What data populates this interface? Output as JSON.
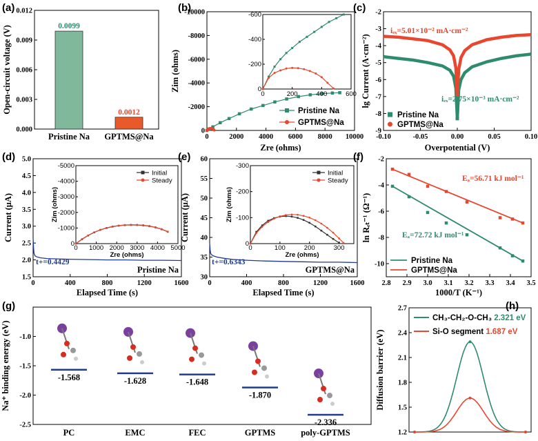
{
  "colors": {
    "green": "#2e8b6c",
    "red": "#e8462e",
    "blue": "#1f3a8f",
    "gray": "#555555",
    "barGreen": "#7fb89a",
    "barRed": "#e85a2a"
  },
  "panel_labels": [
    "(a)",
    "(b)",
    "(c)",
    "(d)",
    "(e)",
    "(f)",
    "(g)",
    "(h)"
  ],
  "chart_data": [
    {
      "id": "a",
      "type": "bar",
      "ylabel": "Open-circuit voltage (V)",
      "categories": [
        "Pristine Na",
        "GPTMS@Na"
      ],
      "values": [
        0.0099,
        0.0012
      ],
      "value_labels": [
        "0.0099",
        "0.0012"
      ],
      "ylim": [
        0,
        0.012
      ],
      "yticks": [
        "0.000",
        "0.003",
        "0.006",
        "0.009",
        "0.012"
      ]
    },
    {
      "id": "b",
      "type": "scatter",
      "xlabel": "Zre (ohms)",
      "ylabel": "Zim (ohms)",
      "xlim": [
        0,
        10000
      ],
      "ylim": [
        0,
        -10000
      ],
      "xticks": [
        "0",
        "2000",
        "4000",
        "6000",
        "8000",
        "10000"
      ],
      "yticks": [
        "0",
        "-2000",
        "-4000",
        "-6000",
        "-8000",
        "-10000"
      ],
      "series": [
        {
          "name": "Pristine Na",
          "x": [
            0,
            150,
            400,
            900,
            1500,
            2200,
            3000,
            3800,
            4600,
            5400,
            6200,
            7000,
            7800,
            8500,
            9000
          ],
          "y": [
            0,
            -120,
            -300,
            -650,
            -1000,
            -1400,
            -1800,
            -2100,
            -2400,
            -2650,
            -2850,
            -3000,
            -3100,
            -3150,
            -3180
          ]
        },
        {
          "name": "GPTMS@Na",
          "x": [
            0,
            50,
            100,
            150,
            200,
            250,
            300,
            350,
            400,
            450,
            500
          ],
          "y": [
            0,
            -80,
            -120,
            -150,
            -165,
            -170,
            -165,
            -150,
            -120,
            -70,
            -20
          ]
        }
      ],
      "inset": {
        "xlim": [
          0,
          600
        ],
        "ylim": [
          0,
          -600
        ],
        "xticks": [
          "0",
          "200",
          "400",
          "600"
        ],
        "yticks": [
          "0",
          "-200",
          "-400",
          "-600"
        ],
        "series": [
          {
            "name": "Pristine Na",
            "x": [
              0,
              40,
              80,
              120,
              160,
              200,
              250,
              300,
              350,
              400,
              450,
              500,
              550
            ],
            "y": [
              0,
              -100,
              -180,
              -240,
              -290,
              -330,
              -380,
              -420,
              -460,
              -500,
              -540,
              -570,
              -600
            ]
          },
          {
            "name": "GPTMS@Na",
            "x": [
              0,
              40,
              80,
              120,
              160,
              200,
              240,
              280,
              320,
              360,
              400,
              440,
              480
            ],
            "y": [
              0,
              -90,
              -130,
              -150,
              -165,
              -170,
              -168,
              -160,
              -145,
              -125,
              -95,
              -50,
              -5
            ]
          }
        ]
      },
      "legend": [
        "Pristine Na",
        "GPTMS@Na"
      ]
    },
    {
      "id": "c",
      "type": "scatter",
      "xlabel": "Overpotential (V)",
      "ylabel": "lg Current (A·cm⁻²)",
      "xlim": [
        -0.1,
        0.1
      ],
      "ylim": [
        -9,
        -2
      ],
      "xticks": [
        "-0.10",
        "-0.05",
        "0.00",
        "0.05",
        "0.10"
      ],
      "yticks": [
        "-2",
        "-3",
        "-4",
        "-5",
        "-6",
        "-7",
        "-8",
        "-9"
      ],
      "annotations": [
        "iₑₓ=5.01×10⁻² mA·cm⁻²",
        "iₑₓ=2.75×10⁻³ mA·cm⁻²"
      ],
      "series": [
        {
          "name": "Pristine Na",
          "x": [
            -0.1,
            -0.08,
            -0.06,
            -0.04,
            -0.02,
            -0.01,
            -0.005,
            -0.002,
            0,
            0.002,
            0.005,
            0.01,
            0.02,
            0.04,
            0.06,
            0.08,
            0.1
          ],
          "y": [
            -4.65,
            -4.75,
            -4.85,
            -5.0,
            -5.2,
            -5.45,
            -5.8,
            -6.5,
            -8.3,
            -6.6,
            -6.0,
            -5.6,
            -5.25,
            -4.95,
            -4.75,
            -4.6,
            -4.5
          ]
        },
        {
          "name": "GPTMS@Na",
          "x": [
            -0.1,
            -0.08,
            -0.06,
            -0.04,
            -0.02,
            -0.01,
            -0.005,
            -0.002,
            0,
            0.002,
            0.005,
            0.01,
            0.02,
            0.04,
            0.06,
            0.08,
            0.1
          ],
          "y": [
            -3.45,
            -3.5,
            -3.6,
            -3.7,
            -3.95,
            -4.25,
            -4.6,
            -5.3,
            -6.9,
            -5.4,
            -4.7,
            -4.3,
            -3.95,
            -3.65,
            -3.5,
            -3.4,
            -3.35
          ]
        }
      ],
      "legend": [
        "Pristine Na",
        "GPTMS@Na"
      ]
    },
    {
      "id": "d",
      "type": "line",
      "xlabel": "Elapsed Time (s)",
      "ylabel": "Current (μA)",
      "xlim": [
        0,
        1600
      ],
      "ylim": [
        1.5,
        5.0
      ],
      "xticks": [
        "0",
        "400",
        "800",
        "1200",
        "1600"
      ],
      "yticks": [
        "1.5",
        "2.0",
        "2.5",
        "3.0",
        "3.5",
        "4.0",
        "4.5",
        "5.0"
      ],
      "t_plus": "t+=0.4429",
      "sample_label": "Pristine Na",
      "series": [
        {
          "name": "current",
          "x": [
            0,
            5,
            10,
            20,
            40,
            80,
            150,
            250,
            400,
            600,
            800,
            1000,
            1200,
            1400,
            1600
          ],
          "y": [
            2.65,
            2.35,
            2.2,
            2.12,
            2.09,
            2.06,
            2.04,
            2.03,
            2.02,
            2.01,
            2.0,
            2.0,
            1.99,
            1.99,
            1.98
          ]
        }
      ],
      "inset": {
        "xlabel": "Zre (ohms)",
        "ylabel": "Zim (ohms)",
        "xlim": [
          0,
          5000
        ],
        "ylim": [
          0,
          -5000
        ],
        "xticks": [
          "0",
          "1000",
          "2000",
          "3000",
          "4000",
          "5000"
        ],
        "yticks": [
          "0",
          "-1000",
          "-2000",
          "-3000",
          "-4000",
          "-5000"
        ],
        "legend": [
          "Initial",
          "Steady"
        ],
        "series": [
          {
            "name": "Initial",
            "x": [
              0,
              300,
              600,
              900,
              1200,
              1500,
              1800,
              2100,
              2400,
              2700,
              3000,
              3300,
              3600,
              3900,
              4200,
              4500
            ],
            "y": [
              0,
              -280,
              -520,
              -720,
              -880,
              -1000,
              -1090,
              -1150,
              -1185,
              -1200,
              -1195,
              -1170,
              -1120,
              -1040,
              -920,
              -760
            ]
          },
          {
            "name": "Steady",
            "x": [
              0,
              300,
              600,
              900,
              1200,
              1500,
              1800,
              2100,
              2400,
              2700,
              3000,
              3300,
              3600,
              3900,
              4200,
              4500
            ],
            "y": [
              0,
              -290,
              -530,
              -730,
              -890,
              -1010,
              -1100,
              -1160,
              -1195,
              -1210,
              -1205,
              -1180,
              -1130,
              -1050,
              -930,
              -770
            ]
          }
        ]
      }
    },
    {
      "id": "e",
      "type": "line",
      "xlabel": "Elapsed Time (s)",
      "ylabel": "Current (μA)",
      "xlim": [
        0,
        1600
      ],
      "ylim": [
        30,
        60
      ],
      "xticks": [
        "0",
        "400",
        "800",
        "1200",
        "1600"
      ],
      "yticks": [
        "30",
        "35",
        "40",
        "45",
        "50",
        "55",
        "60"
      ],
      "t_plus": "t+=0.6343",
      "sample_label": "GPTMS@Na",
      "series": [
        {
          "name": "current",
          "x": [
            0,
            5,
            10,
            20,
            40,
            80,
            150,
            250,
            400,
            600,
            800,
            1000,
            1200,
            1400,
            1600
          ],
          "y": [
            38.5,
            36.8,
            36.0,
            35.6,
            35.3,
            35.0,
            34.7,
            34.4,
            34.2,
            34.0,
            33.9,
            33.8,
            33.7,
            33.7,
            33.6
          ]
        }
      ],
      "inset": {
        "xlabel": "Zre (ohms)",
        "ylabel": "Zim (ohms)",
        "xlim": [
          0,
          350
        ],
        "ylim": [
          0,
          -300
        ],
        "xticks": [
          "0",
          "100",
          "200",
          "300"
        ],
        "yticks": [
          "0",
          "-100",
          "-200",
          "-300"
        ],
        "legend": [
          "Initial",
          "Steady"
        ],
        "series": [
          {
            "name": "Initial",
            "x": [
              0,
              20,
              40,
              60,
              80,
              100,
              120,
              140,
              160,
              180,
              200,
              220,
              240,
              260,
              280,
              300
            ],
            "y": [
              0,
              -45,
              -70,
              -88,
              -98,
              -104,
              -106,
              -104,
              -99,
              -91,
              -80,
              -66,
              -50,
              -34,
              -18,
              -3
            ]
          },
          {
            "name": "Steady",
            "x": [
              0,
              20,
              40,
              60,
              80,
              100,
              120,
              140,
              160,
              180,
              200,
              220,
              240,
              260,
              280,
              300,
              315
            ],
            "y": [
              0,
              -40,
              -65,
              -83,
              -96,
              -105,
              -110,
              -112,
              -111,
              -107,
              -100,
              -90,
              -77,
              -61,
              -42,
              -20,
              -3
            ]
          }
        ]
      }
    },
    {
      "id": "f",
      "type": "scatter",
      "xlabel": "1000/T (K⁻¹)",
      "ylabel": "ln Rₑₜ⁻¹ (Ω⁻¹)",
      "xlim": [
        2.8,
        3.5
      ],
      "ylim": [
        -11,
        -2
      ],
      "xticks": [
        "2.8",
        "2.9",
        "3.0",
        "3.1",
        "3.2",
        "3.3",
        "3.4",
        "3.5"
      ],
      "yticks": [
        "-2",
        "-4",
        "-6",
        "-8",
        "-10"
      ],
      "annotations": [
        "Eₐ=56.71 kJ mol⁻¹",
        "Eₐ=72.72 kJ mol⁻¹"
      ],
      "series": [
        {
          "name": "Pristine Na",
          "x": [
            2.83,
            2.91,
            3.0,
            3.09,
            3.19,
            3.35,
            3.41,
            3.46
          ],
          "y": [
            -4.1,
            -4.9,
            -6.1,
            -6.9,
            -7.8,
            -8.8,
            -9.4,
            -9.8
          ]
        },
        {
          "name": "GPTMS@Na",
          "x": [
            2.83,
            2.91,
            3.0,
            3.09,
            3.19,
            3.35,
            3.41,
            3.46
          ],
          "y": [
            -2.8,
            -3.2,
            -4.1,
            -4.5,
            -5.3,
            -6.5,
            -6.6,
            -6.9
          ]
        }
      ],
      "legend": [
        "Pristine Na",
        "GPTMS@Na"
      ]
    },
    {
      "id": "g",
      "type": "scatter",
      "ylabel": "Na⁺ binding energy (eV)",
      "ylim": [
        -2.5,
        -0.5
      ],
      "yticks": [
        "-1.0",
        "-1.5",
        "-2.0",
        "-2.5"
      ],
      "categories": [
        "PC",
        "EMC",
        "FEC",
        "GPTMS",
        "poly-GPTMS"
      ],
      "values": [
        -1.568,
        -1.628,
        -1.648,
        -1.87,
        -2.336
      ],
      "value_labels": [
        "-1.568",
        "-1.628",
        "-1.648",
        "-1.870",
        "-2.336"
      ]
    },
    {
      "id": "h",
      "type": "line",
      "ylabel": "Diffusion barrier (eV)",
      "ylim": [
        1.2,
        2.7
      ],
      "yticks": [
        "1.2",
        "1.5",
        "1.8",
        "2.1",
        "2.4",
        "2.7"
      ],
      "legend": [
        {
          "label": "CH₃-CH₂-O-CH₃",
          "value": "2.321 eV"
        },
        {
          "label": "Si-O segment",
          "value": "1.687 eV"
        }
      ],
      "series": [
        {
          "name": "CH3-CH2-O-CH3",
          "x": [
            0,
            1,
            2,
            3,
            4,
            5,
            6,
            7,
            8,
            9,
            10
          ],
          "y": [
            1.2,
            1.22,
            1.42,
            1.85,
            2.18,
            2.29,
            2.18,
            1.85,
            1.42,
            1.22,
            1.2
          ]
        },
        {
          "name": "Si-O segment",
          "x": [
            0,
            1,
            2,
            3,
            4,
            5,
            6,
            7,
            8,
            9,
            10
          ],
          "y": [
            1.2,
            1.21,
            1.29,
            1.43,
            1.56,
            1.61,
            1.56,
            1.43,
            1.29,
            1.21,
            1.2
          ]
        }
      ]
    }
  ]
}
